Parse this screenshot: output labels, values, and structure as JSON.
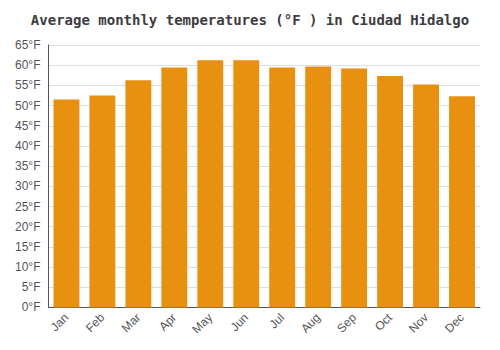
{
  "chart_data": {
    "type": "bar",
    "title": "Average monthly temperatures (°F ) in Ciudad Hidalgo",
    "categories": [
      "Jan",
      "Feb",
      "Mar",
      "Apr",
      "May",
      "Jun",
      "Jul",
      "Aug",
      "Sep",
      "Oct",
      "Nov",
      "Dec"
    ],
    "values": [
      51.5,
      52.5,
      56.3,
      59.4,
      61.2,
      61.2,
      59.4,
      59.7,
      59.2,
      57.3,
      55.2,
      52.3
    ],
    "color": "#E89010",
    "ylim": [
      0,
      65
    ],
    "yticks": [
      {
        "value": 0,
        "label": "0°F"
      },
      {
        "value": 5,
        "label": "5°F"
      },
      {
        "value": 10,
        "label": "10°F"
      },
      {
        "value": 15,
        "label": "15°F"
      },
      {
        "value": 20,
        "label": "20°F"
      },
      {
        "value": 25,
        "label": "25°F"
      },
      {
        "value": 30,
        "label": "30°F"
      },
      {
        "value": 35,
        "label": "35°F"
      },
      {
        "value": 40,
        "label": "40°F"
      },
      {
        "value": 45,
        "label": "45°F"
      },
      {
        "value": 50,
        "label": "50°F"
      },
      {
        "value": 55,
        "label": "55°F"
      },
      {
        "value": 60,
        "label": "60°F"
      },
      {
        "value": 65,
        "label": "65°F"
      }
    ],
    "grid": true
  }
}
